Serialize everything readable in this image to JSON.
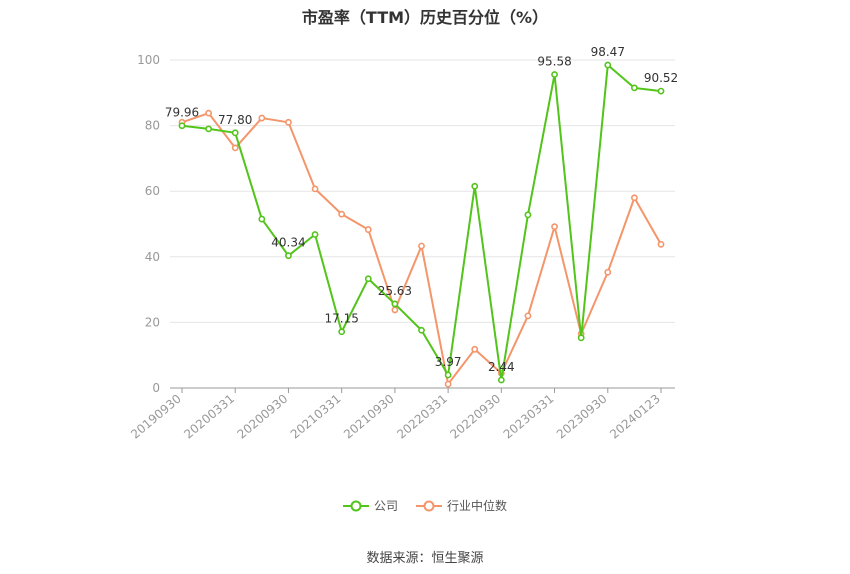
{
  "chart_data": {
    "type": "line",
    "title": "市盈率（TTM）历史百分位（%）",
    "x": [
      "20190930",
      "20191231",
      "20200331",
      "20200630",
      "20200930",
      "20201231",
      "20210331",
      "20210630",
      "20210930",
      "20211231",
      "20220331",
      "20220630",
      "20220930",
      "20221231",
      "20230331",
      "20230630",
      "20230930",
      "20231231",
      "20240123"
    ],
    "x_tick_labels": [
      "20190930",
      "20200331",
      "20200930",
      "20210331",
      "20210930",
      "20220331",
      "20220930",
      "20230331",
      "20230930",
      "20240123"
    ],
    "ylim": [
      0,
      100
    ],
    "yticks": [
      0,
      20,
      40,
      60,
      80,
      100
    ],
    "grid": true,
    "legend_position": "bottom",
    "series": [
      {
        "name": "公司",
        "color": "#52c41a",
        "values": [
          79.96,
          79.0,
          77.8,
          51.5,
          40.34,
          46.8,
          17.15,
          33.3,
          25.63,
          17.6,
          3.97,
          61.5,
          2.44,
          52.8,
          95.58,
          15.3,
          98.47,
          91.5,
          90.52
        ],
        "labels": {
          "0": "79.96",
          "2": "77.80",
          "4": "40.34",
          "6": "17.15",
          "8": "25.63",
          "10": "3.97",
          "12": "2.44",
          "14": "95.58",
          "16": "98.47",
          "18": "90.52"
        }
      },
      {
        "name": "行业中位数",
        "color": "#f4956a",
        "values": [
          81.0,
          83.8,
          73.2,
          82.3,
          81.0,
          60.7,
          53.0,
          48.3,
          23.8,
          43.3,
          1.2,
          11.8,
          4.5,
          22.0,
          49.2,
          16.5,
          35.3,
          58.0,
          43.8
        ]
      }
    ]
  },
  "footer": {
    "source": "数据来源：恒生聚源"
  }
}
